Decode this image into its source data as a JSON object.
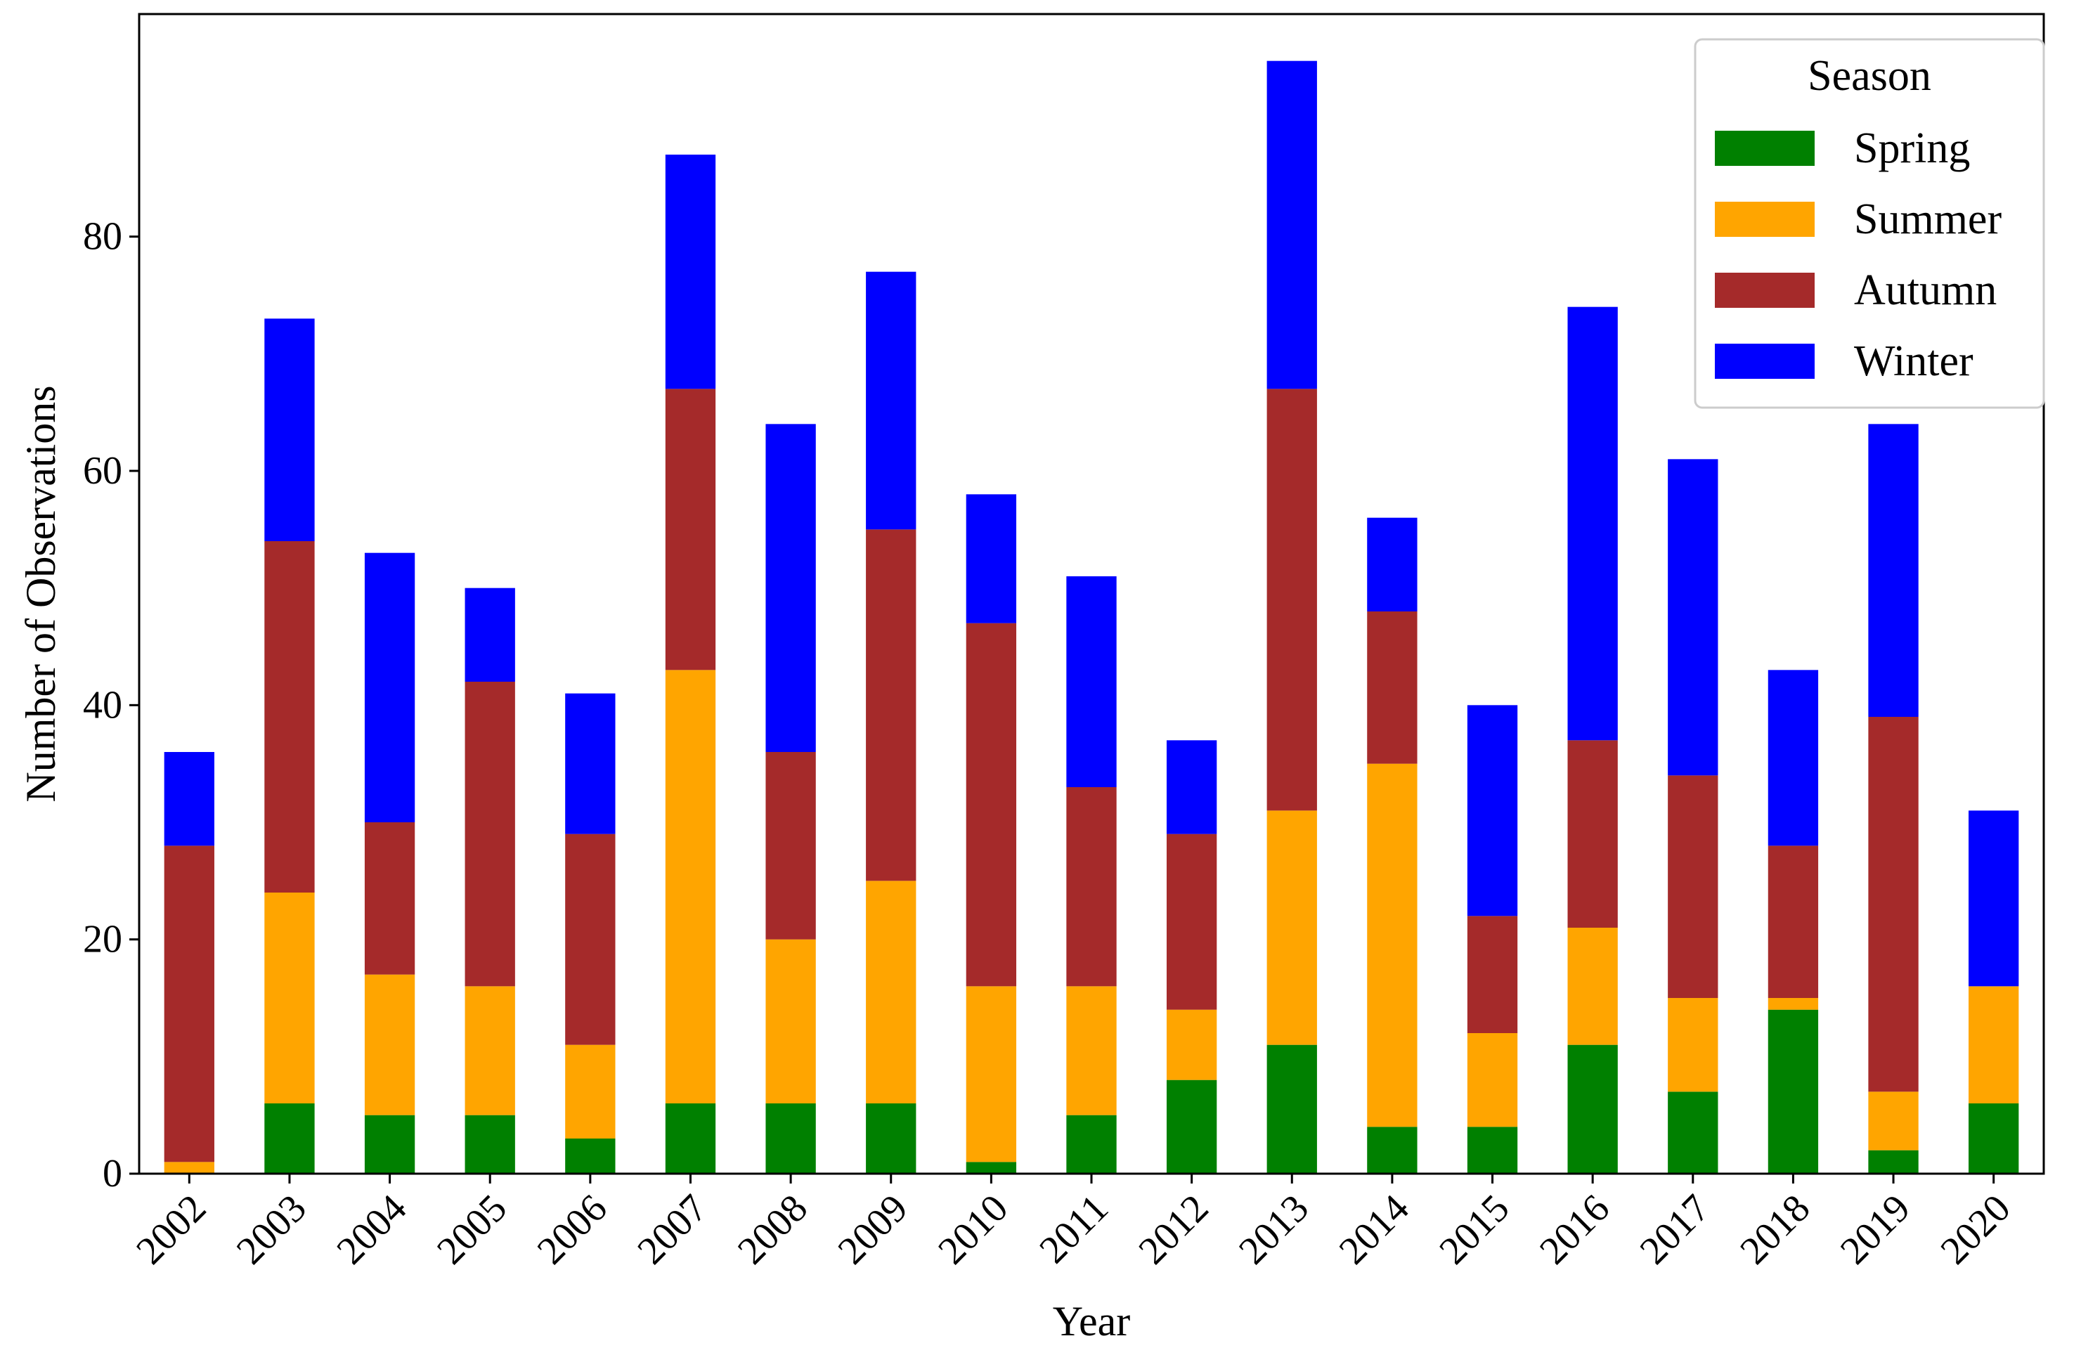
{
  "chart_data": {
    "type": "bar",
    "stacked": true,
    "title": "",
    "xlabel": "Year",
    "ylabel": "Number of Observations",
    "ylim": [
      0,
      99
    ],
    "yticks": [
      0,
      20,
      40,
      60,
      80
    ],
    "categories": [
      "2002",
      "2003",
      "2004",
      "2005",
      "2006",
      "2007",
      "2008",
      "2009",
      "2010",
      "2011",
      "2012",
      "2013",
      "2014",
      "2015",
      "2016",
      "2017",
      "2018",
      "2019",
      "2020"
    ],
    "series": [
      {
        "name": "Spring",
        "color": "#008000",
        "values": [
          0,
          6,
          5,
          5,
          3,
          6,
          6,
          6,
          1,
          5,
          8,
          11,
          4,
          4,
          11,
          7,
          14,
          2,
          6
        ]
      },
      {
        "name": "Summer",
        "color": "#FFA500",
        "values": [
          1,
          18,
          12,
          11,
          8,
          37,
          14,
          19,
          15,
          11,
          6,
          20,
          31,
          8,
          10,
          8,
          1,
          5,
          10
        ]
      },
      {
        "name": "Autumn",
        "color": "#A52A2A",
        "values": [
          27,
          30,
          13,
          26,
          18,
          24,
          16,
          30,
          31,
          17,
          15,
          36,
          13,
          10,
          16,
          19,
          13,
          32,
          0
        ]
      },
      {
        "name": "Winter",
        "color": "#0000FF",
        "values": [
          8,
          19,
          23,
          8,
          12,
          20,
          28,
          22,
          11,
          18,
          8,
          28,
          8,
          18,
          37,
          27,
          15,
          25,
          15
        ]
      }
    ],
    "legend": {
      "title": "Season",
      "position": "top-right"
    },
    "grid": false
  }
}
